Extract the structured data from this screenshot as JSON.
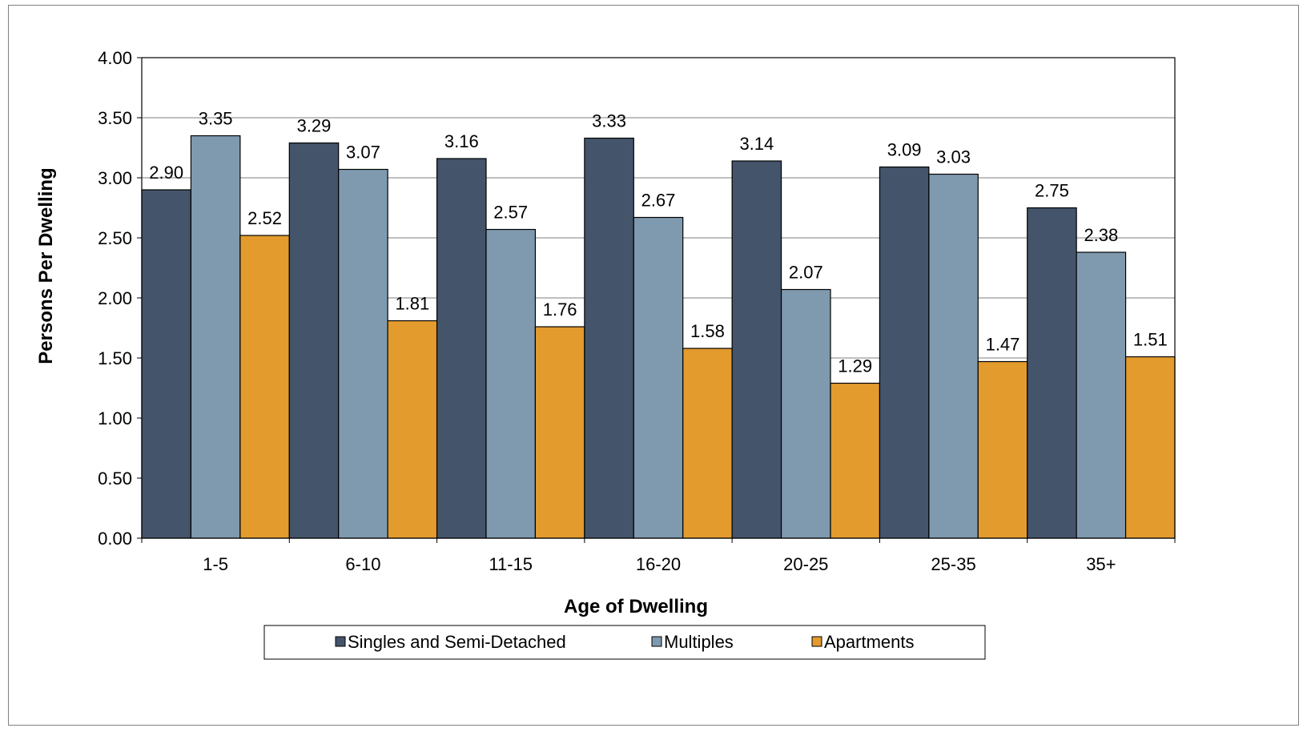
{
  "chart_data": {
    "type": "bar",
    "title": "",
    "xlabel": "Age of Dwelling",
    "ylabel": "Persons Per Dwelling",
    "categories": [
      "1-5",
      "6-10",
      "11-15",
      "16-20",
      "20-25",
      "25-35",
      "35+"
    ],
    "series": [
      {
        "name": "Singles and Semi-Detached",
        "color": "#44546a",
        "values": [
          2.9,
          3.29,
          3.16,
          3.33,
          3.14,
          3.09,
          2.75
        ]
      },
      {
        "name": "Multiples",
        "color": "#7f9aaf",
        "values": [
          3.35,
          3.07,
          2.57,
          2.67,
          2.07,
          3.03,
          2.38
        ]
      },
      {
        "name": "Apartments",
        "color": "#e39b2e",
        "values": [
          2.52,
          1.81,
          1.76,
          1.58,
          1.29,
          1.47,
          1.51
        ]
      }
    ],
    "ylim": [
      0,
      4
    ],
    "ytick_step": 0.5,
    "y_tick_decimals": 2,
    "grid": true,
    "legend_position": "bottom",
    "data_labels": true
  }
}
